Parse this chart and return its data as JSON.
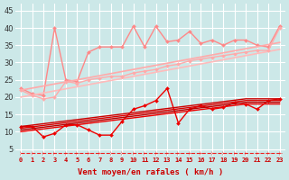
{
  "x": [
    0,
    1,
    2,
    3,
    4,
    5,
    6,
    7,
    8,
    9,
    10,
    11,
    12,
    13,
    14,
    15,
    16,
    17,
    18,
    19,
    20,
    21,
    22,
    23
  ],
  "xlabel": "Vent moyen/en rafales ( km/h )",
  "ylabel_ticks": [
    5,
    10,
    15,
    20,
    25,
    30,
    35,
    40,
    45
  ],
  "ylim": [
    3,
    47
  ],
  "xlim": [
    -0.5,
    23.5
  ],
  "bg_color": "#cce8e8",
  "grid_color": "#ffffff",
  "series": [
    {
      "name": "pink_zigzag_top",
      "color": "#ff8888",
      "linewidth": 1.0,
      "marker": "D",
      "markersize": 2.0,
      "linestyle": "-",
      "values": [
        22.5,
        21.0,
        20.5,
        40.0,
        25.0,
        24.5,
        33.0,
        34.5,
        34.5,
        34.5,
        40.5,
        34.5,
        40.5,
        36.0,
        36.5,
        39.0,
        35.5,
        36.5,
        35.0,
        36.5,
        36.5,
        35.0,
        34.5,
        40.5
      ]
    },
    {
      "name": "pink_straight_upper",
      "color": "#ffaaaa",
      "linewidth": 1.2,
      "marker": null,
      "markersize": 0,
      "linestyle": "-",
      "values": [
        22.0,
        22.6,
        23.2,
        23.8,
        24.4,
        25.0,
        25.6,
        26.2,
        26.8,
        27.4,
        28.0,
        28.6,
        29.2,
        29.8,
        30.4,
        31.0,
        31.6,
        32.2,
        32.8,
        33.4,
        34.0,
        34.6,
        35.2,
        35.8
      ]
    },
    {
      "name": "pink_straight_lower",
      "color": "#ffbbbb",
      "linewidth": 1.2,
      "marker": null,
      "markersize": 0,
      "linestyle": "-",
      "values": [
        20.0,
        20.6,
        21.2,
        21.8,
        22.4,
        23.0,
        23.6,
        24.2,
        24.8,
        25.4,
        26.0,
        26.6,
        27.2,
        27.8,
        28.4,
        29.0,
        29.6,
        30.2,
        30.8,
        31.4,
        32.0,
        32.6,
        33.2,
        33.8
      ]
    },
    {
      "name": "pink_zigzag_lower",
      "color": "#ffaaaa",
      "linewidth": 1.0,
      "marker": "D",
      "markersize": 2.0,
      "linestyle": "-",
      "values": [
        22.0,
        20.5,
        19.5,
        20.0,
        24.5,
        24.0,
        25.0,
        25.5,
        26.0,
        26.0,
        27.0,
        27.5,
        28.0,
        29.0,
        29.5,
        30.5,
        31.0,
        31.5,
        32.0,
        32.5,
        33.0,
        33.5,
        33.5,
        40.0
      ]
    },
    {
      "name": "red_zigzag",
      "color": "#ee0000",
      "linewidth": 1.0,
      "marker": "D",
      "markersize": 2.0,
      "linestyle": "-",
      "values": [
        11.5,
        11.5,
        8.5,
        9.5,
        12.0,
        12.0,
        10.5,
        9.0,
        9.0,
        13.0,
        16.5,
        17.5,
        19.0,
        22.5,
        12.5,
        16.5,
        17.5,
        16.5,
        17.0,
        18.5,
        18.0,
        16.5,
        19.0,
        19.5
      ]
    },
    {
      "name": "red_straight1",
      "color": "#cc0000",
      "linewidth": 1.0,
      "marker": null,
      "markersize": 0,
      "linestyle": "-",
      "values": [
        11.5,
        11.9,
        12.3,
        12.7,
        13.1,
        13.5,
        13.9,
        14.3,
        14.7,
        15.1,
        15.5,
        15.9,
        16.3,
        16.7,
        17.1,
        17.5,
        17.9,
        18.3,
        18.7,
        19.1,
        19.5,
        19.5,
        19.5,
        19.5
      ]
    },
    {
      "name": "red_straight2",
      "color": "#dd0000",
      "linewidth": 1.0,
      "marker": null,
      "markersize": 0,
      "linestyle": "-",
      "values": [
        11.0,
        11.4,
        11.8,
        12.2,
        12.6,
        13.0,
        13.4,
        13.8,
        14.2,
        14.6,
        15.0,
        15.4,
        15.8,
        16.2,
        16.6,
        17.0,
        17.4,
        17.8,
        18.2,
        18.6,
        19.0,
        19.0,
        19.0,
        19.0
      ]
    },
    {
      "name": "red_straight3",
      "color": "#bb0000",
      "linewidth": 1.0,
      "marker": null,
      "markersize": 0,
      "linestyle": "-",
      "values": [
        10.5,
        10.9,
        11.3,
        11.7,
        12.1,
        12.5,
        12.9,
        13.3,
        13.7,
        14.1,
        14.5,
        14.9,
        15.3,
        15.7,
        16.1,
        16.5,
        16.9,
        17.3,
        17.7,
        18.1,
        18.5,
        18.5,
        18.5,
        18.5
      ]
    },
    {
      "name": "red_straight4",
      "color": "#ee0000",
      "linewidth": 1.0,
      "marker": null,
      "markersize": 0,
      "linestyle": "-",
      "values": [
        10.0,
        10.4,
        10.8,
        11.2,
        11.6,
        12.0,
        12.4,
        12.8,
        13.2,
        13.6,
        14.0,
        14.4,
        14.8,
        15.2,
        15.6,
        16.0,
        16.4,
        16.8,
        17.2,
        17.6,
        18.0,
        18.0,
        18.0,
        18.0
      ]
    },
    {
      "name": "dashed_bottom",
      "color": "#ee2222",
      "linewidth": 0.8,
      "marker": "4",
      "markersize": 3.5,
      "linestyle": "--",
      "values": [
        3.8,
        3.8,
        3.8,
        3.8,
        3.8,
        3.8,
        3.8,
        3.8,
        3.8,
        3.8,
        3.8,
        3.8,
        3.8,
        3.8,
        3.8,
        3.8,
        3.8,
        3.8,
        3.8,
        3.8,
        3.8,
        3.8,
        3.8,
        3.8
      ]
    }
  ]
}
